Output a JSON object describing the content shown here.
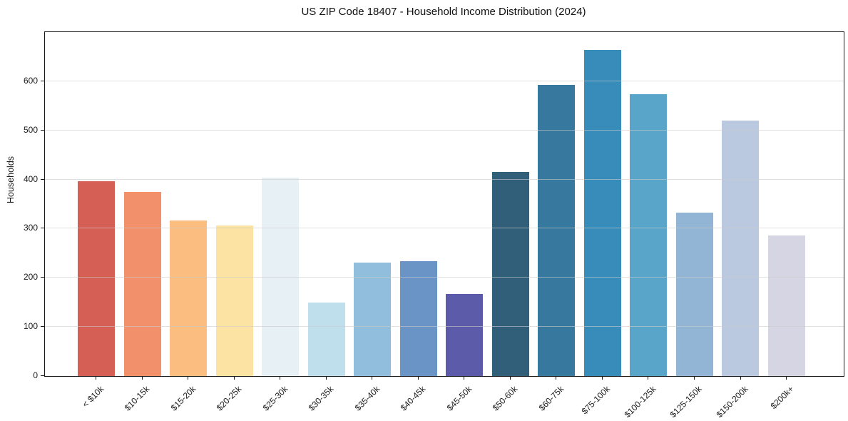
{
  "title": "US ZIP Code 18407 - Household Income Distribution (2024)",
  "chart_data": {
    "type": "bar",
    "title": "US ZIP Code 18407 - Household Income Distribution (2024)",
    "xlabel": "",
    "ylabel": "Households",
    "ylim": [
      0,
      700
    ],
    "yticks": [
      0,
      100,
      200,
      300,
      400,
      500,
      600
    ],
    "grid": "horizontal-only",
    "legend": "none",
    "categories": [
      "< $10k",
      "$10-15k",
      "$15-20k",
      "$20-25k",
      "$25-30k",
      "$30-35k",
      "$35-40k",
      "$40-45k",
      "$45-50k",
      "$50-60k",
      "$60-75k",
      "$75-100k",
      "$100-125k",
      "$125-150k",
      "$150-200k",
      "$200k+"
    ],
    "values": [
      397,
      375,
      316,
      307,
      404,
      150,
      231,
      234,
      167,
      415,
      593,
      664,
      574,
      332,
      520,
      286
    ],
    "bar_colors": [
      "#d65f55",
      "#f2906b",
      "#fbbd80",
      "#fde3a3",
      "#e7f1f5",
      "#c0dfec",
      "#92bedd",
      "#6b94c6",
      "#5c5baa",
      "#315f7a",
      "#36789e",
      "#388cba",
      "#58a5c9",
      "#92b5d6",
      "#bac9df",
      "#d5d5e4"
    ]
  }
}
